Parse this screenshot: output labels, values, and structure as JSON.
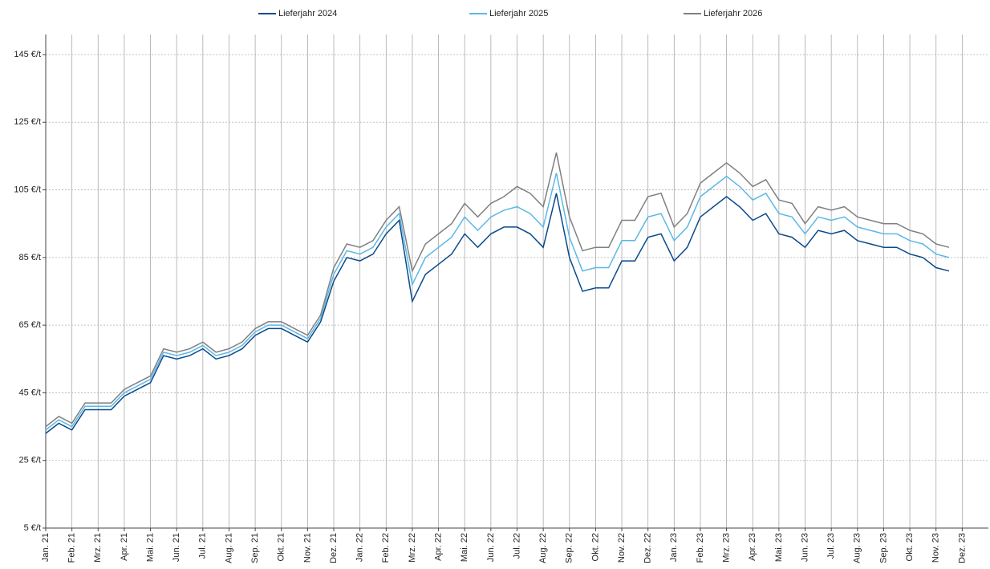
{
  "chart_data": {
    "type": "line",
    "x": [
      0,
      0.5,
      1,
      1.5,
      2,
      2.5,
      3,
      3.5,
      4,
      4.5,
      5,
      5.5,
      6,
      6.5,
      7,
      7.5,
      8,
      8.5,
      9,
      9.5,
      10,
      10.5,
      11,
      11.5,
      12,
      12.5,
      13,
      13.5,
      14,
      14.5,
      15,
      15.5,
      16,
      16.5,
      17,
      17.5,
      18,
      18.5,
      19,
      19.5,
      20,
      20.5,
      21,
      21.5,
      22,
      22.5,
      23,
      23.5,
      24,
      24.5,
      25,
      25.5,
      26,
      26.5,
      27,
      27.5,
      28,
      28.5,
      29,
      29.5,
      30,
      30.5,
      31,
      31.5,
      32,
      32.5,
      33,
      33.5,
      34,
      34.5
    ],
    "series": [
      {
        "name": "Lieferjahr 2024",
        "color": "#0a4a8c",
        "values": [
          33,
          36,
          34,
          40,
          40,
          40,
          44,
          46,
          48,
          56,
          55,
          56,
          58,
          55,
          56,
          58,
          62,
          64,
          64,
          62,
          60,
          66,
          78,
          85,
          84,
          86,
          92,
          96,
          72,
          80,
          83,
          86,
          92,
          88,
          92,
          94,
          94,
          92,
          88,
          104,
          85,
          75,
          76,
          76,
          84,
          84,
          91,
          92,
          84,
          88,
          97,
          100,
          103,
          100,
          96,
          98,
          92,
          91,
          88,
          93,
          92,
          93,
          90,
          89,
          88,
          88,
          86,
          85,
          82,
          81
        ]
      },
      {
        "name": "Lieferjahr 2025",
        "color": "#5bb8e6",
        "values": [
          34,
          37,
          35,
          41,
          41,
          41,
          45,
          47,
          49,
          57,
          56,
          57,
          59,
          56,
          57,
          59,
          63,
          65,
          65,
          63,
          61,
          67,
          80,
          87,
          86,
          88,
          94,
          98,
          77,
          85,
          88,
          91,
          97,
          93,
          97,
          99,
          100,
          98,
          94,
          110,
          91,
          81,
          82,
          82,
          90,
          90,
          97,
          98,
          90,
          94,
          103,
          106,
          109,
          106,
          102,
          104,
          98,
          97,
          92,
          97,
          96,
          97,
          94,
          93,
          92,
          92,
          90,
          89,
          86,
          85
        ]
      },
      {
        "name": "Lieferjahr 2026",
        "color": "#808080",
        "values": [
          35,
          38,
          36,
          42,
          42,
          42,
          46,
          48,
          50,
          58,
          57,
          58,
          60,
          57,
          58,
          60,
          64,
          66,
          66,
          64,
          62,
          68,
          82,
          89,
          88,
          90,
          96,
          100,
          81,
          89,
          92,
          95,
          101,
          97,
          101,
          103,
          106,
          104,
          100,
          116,
          97,
          87,
          88,
          88,
          96,
          96,
          103,
          104,
          94,
          98,
          107,
          110,
          113,
          110,
          106,
          108,
          102,
          101,
          95,
          100,
          99,
          100,
          97,
          96,
          95,
          95,
          93,
          92,
          89,
          88
        ]
      }
    ],
    "xlim": [
      0,
      36
    ],
    "xticks": [
      {
        "value": 0,
        "label": "Jan. 21"
      },
      {
        "value": 1,
        "label": "Feb. 21"
      },
      {
        "value": 2,
        "label": "Mrz. 21"
      },
      {
        "value": 3,
        "label": "Apr. 21"
      },
      {
        "value": 4,
        "label": "Mai. 21"
      },
      {
        "value": 5,
        "label": "Jun. 21"
      },
      {
        "value": 6,
        "label": "Jul. 21"
      },
      {
        "value": 7,
        "label": "Aug. 21"
      },
      {
        "value": 8,
        "label": "Sep. 21"
      },
      {
        "value": 9,
        "label": "Okt. 21"
      },
      {
        "value": 10,
        "label": "Nov. 21"
      },
      {
        "value": 11,
        "label": "Dez. 21"
      },
      {
        "value": 12,
        "label": "Jan. 22"
      },
      {
        "value": 13,
        "label": "Feb. 22"
      },
      {
        "value": 14,
        "label": "Mrz. 22"
      },
      {
        "value": 15,
        "label": "Apr. 22"
      },
      {
        "value": 16,
        "label": "Mai. 22"
      },
      {
        "value": 17,
        "label": "Jun. 22"
      },
      {
        "value": 18,
        "label": "Jul. 22"
      },
      {
        "value": 19,
        "label": "Aug. 22"
      },
      {
        "value": 20,
        "label": "Sep. 22"
      },
      {
        "value": 21,
        "label": "Okt. 22"
      },
      {
        "value": 22,
        "label": "Nov. 22"
      },
      {
        "value": 23,
        "label": "Dez. 22"
      },
      {
        "value": 24,
        "label": "Jan. 23"
      },
      {
        "value": 25,
        "label": "Feb. 23"
      },
      {
        "value": 26,
        "label": "Mrz. 23"
      },
      {
        "value": 27,
        "label": "Apr. 23"
      },
      {
        "value": 28,
        "label": "Mai. 23"
      },
      {
        "value": 29,
        "label": "Jun. 23"
      },
      {
        "value": 30,
        "label": "Jul. 23"
      },
      {
        "value": 31,
        "label": "Aug. 23"
      },
      {
        "value": 32,
        "label": "Sep. 23"
      },
      {
        "value": 33,
        "label": "Okt. 23"
      },
      {
        "value": 34,
        "label": "Nov. 23"
      },
      {
        "value": 35,
        "label": "Dez. 23"
      }
    ],
    "ylim": [
      5,
      145
    ],
    "yticks": [
      {
        "value": 5,
        "label": "5 €/t"
      },
      {
        "value": 25,
        "label": "25 €/t"
      },
      {
        "value": 45,
        "label": "45 €/t"
      },
      {
        "value": 65,
        "label": "65 €/t"
      },
      {
        "value": 85,
        "label": "85 €/t"
      },
      {
        "value": 105,
        "label": "105 €/t"
      },
      {
        "value": 125,
        "label": "125 €/t"
      },
      {
        "value": 145,
        "label": "145 €/t"
      }
    ],
    "grid": true,
    "legend": "top"
  }
}
